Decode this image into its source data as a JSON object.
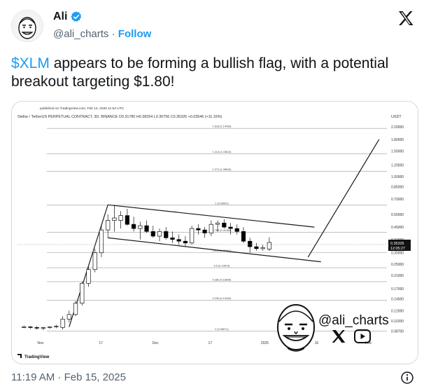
{
  "author": {
    "name": "Ali",
    "handle": "@ali_charts",
    "separator": "·",
    "follow_label": "Follow"
  },
  "tweet": {
    "cashtag": "$XLM",
    "text": " appears to be forming a bullish flag, with a potential breakout targeting $1.80!"
  },
  "timestamp": "11:19 AM · Feb 15, 2025",
  "colors": {
    "accent": "#1d9bf0",
    "up_candle": "#ffffff",
    "down_candle": "#000000",
    "grid": "#bdbdbd"
  },
  "chart": {
    "published": "published on TradingView.com, Feb 14, 2025 11:54 UTC",
    "symbol_line": "Stellar / TetherUS PERPETUAL CONTRACT, 3D, BINANCE  O0.31780  H0.38254  L0.30756  C0.35326  +0.03546 (+11.16%)",
    "currency": "USDT",
    "price_label": "0.35326",
    "countdown": "12:05:27",
    "watermark_handle": "@ali_charts",
    "footer": "TradingView",
    "icons": [
      "x-icon",
      "youtube-icon",
      "cartoon-face-icon",
      "info-icon"
    ]
  },
  "chart_data": {
    "type": "candlestick",
    "title": "Stellar / TetherUS PERPETUAL CONTRACT, 3D, BINANCE",
    "ylabel": "USDT",
    "scale": "log",
    "ylim": [
      0.08,
      2.4
    ],
    "grid": false,
    "y_ticks": [
      "2.20000",
      "1.80000",
      "1.50000",
      "1.20000",
      "1.00000",
      "0.85000",
      "0.70000",
      "0.55000",
      "0.45000",
      "0.37000",
      "0.30000",
      "0.25000",
      "0.21000",
      "0.17000",
      "0.14500",
      "0.12000",
      "0.10200",
      "0.08700"
    ],
    "x_ticks": [
      "Nov",
      "17",
      "Dec",
      "17",
      "2025",
      "16",
      "Feb"
    ],
    "fib_levels": [
      {
        "label": "1.618 (2.14433)",
        "value": 2.14433
      },
      {
        "label": "1.414 (1.43613)",
        "value": 1.43613
      },
      {
        "label": "1.272 (1.08644)",
        "value": 1.08644
      },
      {
        "label": "1 (0.63651)",
        "value": 0.63651
      },
      {
        "label": "0.786 (0.41364)",
        "value": 0.41364
      },
      {
        "label": "0.618 (0.30061)",
        "value": 0.30061
      },
      {
        "label": "0.5 (0.23673)",
        "value": 0.23673
      },
      {
        "label": "0.382 (0.18999)",
        "value": 0.18999
      },
      {
        "label": "0.236 (0.14182)",
        "value": 0.14182
      },
      {
        "label": "0 (0.08671)",
        "value": 0.08671
      }
    ],
    "candles": [
      {
        "t": 0,
        "o": 0.093,
        "h": 0.095,
        "l": 0.091,
        "c": 0.093
      },
      {
        "t": 1,
        "o": 0.093,
        "h": 0.094,
        "l": 0.09,
        "c": 0.092
      },
      {
        "t": 2,
        "o": 0.092,
        "h": 0.094,
        "l": 0.089,
        "c": 0.091
      },
      {
        "t": 3,
        "o": 0.091,
        "h": 0.093,
        "l": 0.088,
        "c": 0.092
      },
      {
        "t": 4,
        "o": 0.092,
        "h": 0.094,
        "l": 0.09,
        "c": 0.093
      },
      {
        "t": 5,
        "o": 0.093,
        "h": 0.096,
        "l": 0.091,
        "c": 0.094
      },
      {
        "t": 6,
        "o": 0.092,
        "h": 0.11,
        "l": 0.089,
        "c": 0.105
      },
      {
        "t": 7,
        "o": 0.105,
        "h": 0.12,
        "l": 0.1,
        "c": 0.113
      },
      {
        "t": 8,
        "o": 0.113,
        "h": 0.14,
        "l": 0.11,
        "c": 0.135
      },
      {
        "t": 9,
        "o": 0.135,
        "h": 0.19,
        "l": 0.13,
        "c": 0.185
      },
      {
        "t": 10,
        "o": 0.185,
        "h": 0.24,
        "l": 0.175,
        "c": 0.23
      },
      {
        "t": 11,
        "o": 0.23,
        "h": 0.32,
        "l": 0.22,
        "c": 0.3
      },
      {
        "t": 12,
        "o": 0.3,
        "h": 0.47,
        "l": 0.28,
        "c": 0.43
      },
      {
        "t": 13,
        "o": 0.43,
        "h": 0.55,
        "l": 0.38,
        "c": 0.5
      },
      {
        "t": 14,
        "o": 0.5,
        "h": 0.64,
        "l": 0.42,
        "c": 0.52
      },
      {
        "t": 15,
        "o": 0.5,
        "h": 0.58,
        "l": 0.44,
        "c": 0.54
      },
      {
        "t": 16,
        "o": 0.54,
        "h": 0.6,
        "l": 0.46,
        "c": 0.47
      },
      {
        "t": 17,
        "o": 0.47,
        "h": 0.53,
        "l": 0.42,
        "c": 0.44
      },
      {
        "t": 18,
        "o": 0.44,
        "h": 0.49,
        "l": 0.37,
        "c": 0.46
      },
      {
        "t": 19,
        "o": 0.46,
        "h": 0.5,
        "l": 0.41,
        "c": 0.42
      },
      {
        "t": 20,
        "o": 0.42,
        "h": 0.46,
        "l": 0.38,
        "c": 0.39
      },
      {
        "t": 21,
        "o": 0.39,
        "h": 0.44,
        "l": 0.36,
        "c": 0.42
      },
      {
        "t": 22,
        "o": 0.42,
        "h": 0.45,
        "l": 0.37,
        "c": 0.38
      },
      {
        "t": 23,
        "o": 0.38,
        "h": 0.42,
        "l": 0.35,
        "c": 0.37
      },
      {
        "t": 24,
        "o": 0.37,
        "h": 0.4,
        "l": 0.34,
        "c": 0.36
      },
      {
        "t": 25,
        "o": 0.36,
        "h": 0.39,
        "l": 0.33,
        "c": 0.35
      },
      {
        "t": 26,
        "o": 0.35,
        "h": 0.46,
        "l": 0.34,
        "c": 0.44
      },
      {
        "t": 27,
        "o": 0.44,
        "h": 0.47,
        "l": 0.4,
        "c": 0.43
      },
      {
        "t": 28,
        "o": 0.43,
        "h": 0.45,
        "l": 0.38,
        "c": 0.41
      },
      {
        "t": 29,
        "o": 0.41,
        "h": 0.5,
        "l": 0.39,
        "c": 0.47
      },
      {
        "t": 30,
        "o": 0.47,
        "h": 0.5,
        "l": 0.42,
        "c": 0.48
      },
      {
        "t": 31,
        "o": 0.48,
        "h": 0.51,
        "l": 0.44,
        "c": 0.45
      },
      {
        "t": 32,
        "o": 0.45,
        "h": 0.48,
        "l": 0.4,
        "c": 0.44
      },
      {
        "t": 33,
        "o": 0.44,
        "h": 0.47,
        "l": 0.4,
        "c": 0.42
      },
      {
        "t": 34,
        "o": 0.42,
        "h": 0.45,
        "l": 0.35,
        "c": 0.36
      },
      {
        "t": 35,
        "o": 0.36,
        "h": 0.38,
        "l": 0.3,
        "c": 0.33
      },
      {
        "t": 36,
        "o": 0.33,
        "h": 0.35,
        "l": 0.31,
        "c": 0.32
      },
      {
        "t": 37,
        "o": 0.32,
        "h": 0.34,
        "l": 0.31,
        "c": 0.325
      },
      {
        "t": 38,
        "o": 0.318,
        "h": 0.383,
        "l": 0.308,
        "c": 0.353
      }
    ],
    "flag_lines": [
      {
        "from": [
          7,
          0.093
        ],
        "to": [
          13,
          0.64
        ]
      },
      {
        "from": [
          13,
          0.64
        ],
        "to": [
          45,
          0.45
        ]
      },
      {
        "from": [
          13,
          0.38
        ],
        "to": [
          46,
          0.26
        ]
      },
      {
        "from": [
          44,
          0.28
        ],
        "to": [
          55,
          1.8
        ]
      }
    ]
  }
}
